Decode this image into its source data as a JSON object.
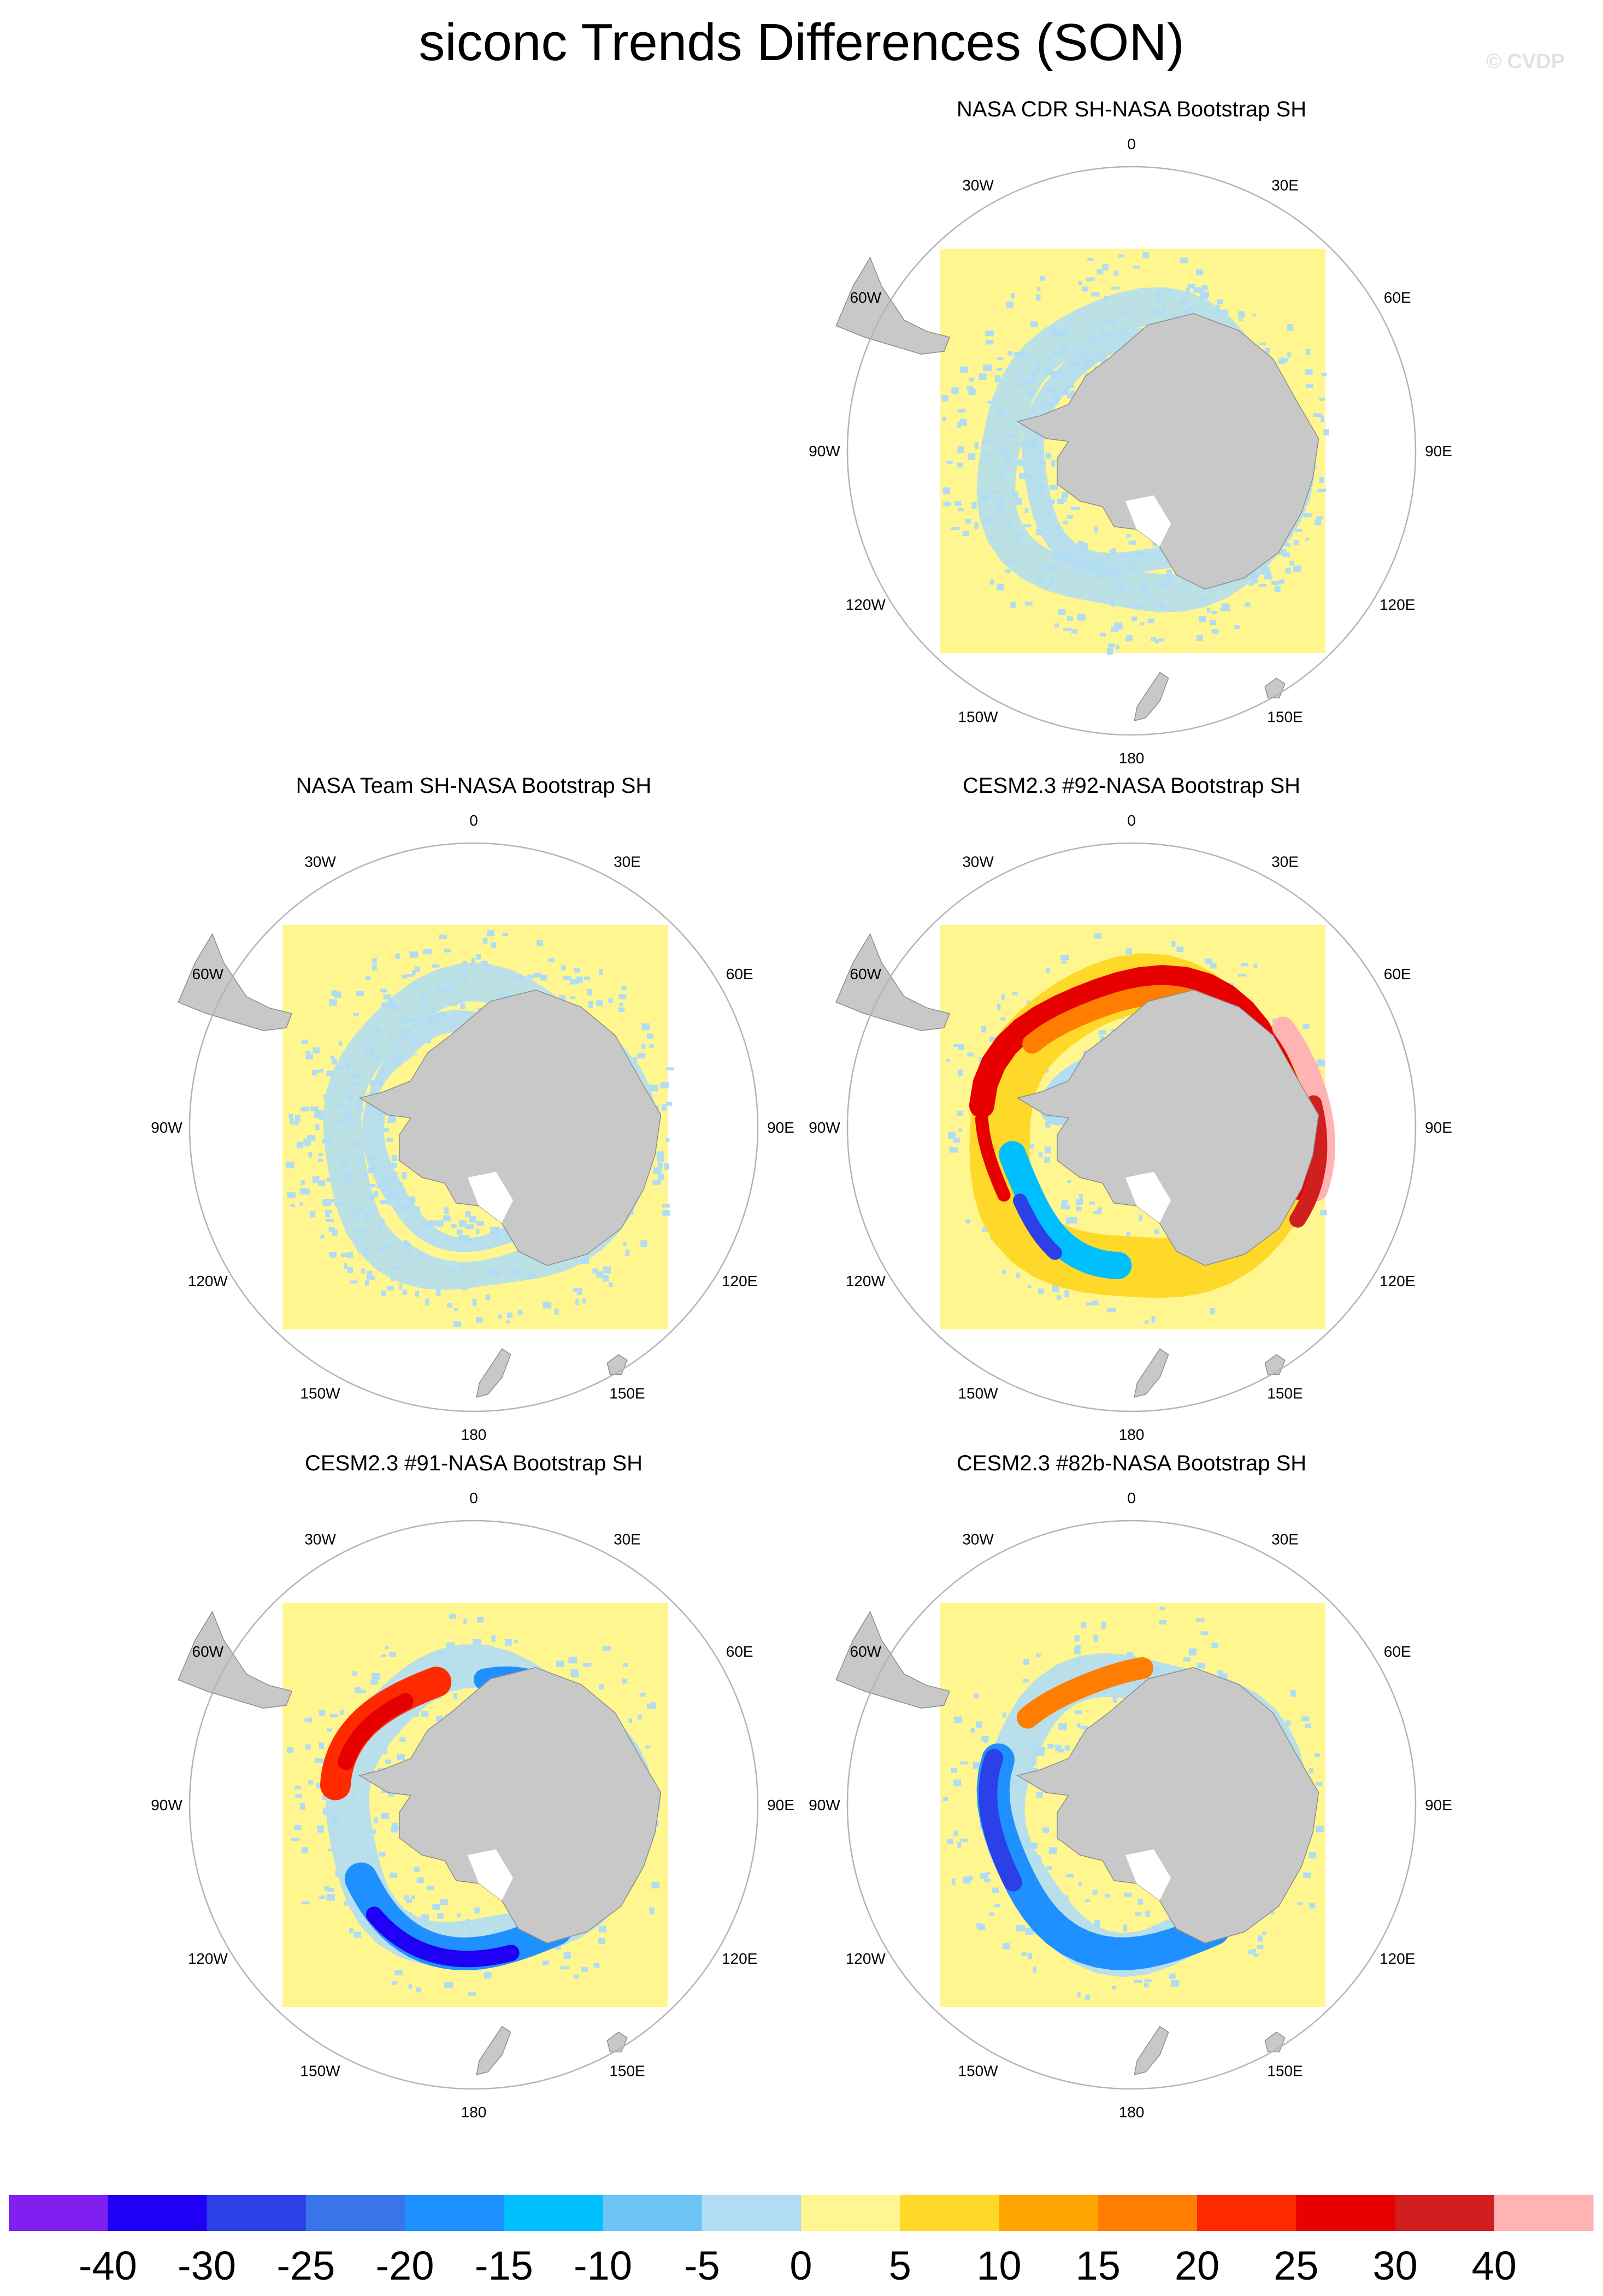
{
  "title": "siconc Trends Differences (SON)",
  "watermark": "© CVDP",
  "lon_labels": [
    "0",
    "30E",
    "60E",
    "90E",
    "120E",
    "150E",
    "180",
    "150W",
    "120W",
    "90W",
    "60W",
    "30W"
  ],
  "colors": {
    "ocean_neutral": "#fff68f",
    "small_negative": "#b0ddf4",
    "land": "#c8c8c8",
    "land_edge": "#8c8c8c",
    "frame": "#b4b4b4"
  },
  "panels": [
    {
      "id": "cdr",
      "title": "NASA CDR SH-NASA Bootstrap SH",
      "pattern": "mild"
    },
    {
      "id": "team",
      "title": "NASA Team SH-NASA Bootstrap SH",
      "pattern": "mild2"
    },
    {
      "id": "c92",
      "title": "CESM2.3 #92-NASA Bootstrap SH",
      "pattern": "warm"
    },
    {
      "id": "c91",
      "title": "CESM2.3 #91-NASA Bootstrap SH",
      "pattern": "mixed"
    },
    {
      "id": "c82b",
      "title": "CESM2.3 #82b-NASA Bootstrap SH",
      "pattern": "cool"
    }
  ],
  "colorbar": {
    "colors": [
      "#7f1ff0",
      "#1f00f5",
      "#2b40e6",
      "#3a74ea",
      "#1f90ff",
      "#00bfff",
      "#6ec5f5",
      "#b0ddf4",
      "#fff68f",
      "#ffd92a",
      "#ffa500",
      "#ff7d00",
      "#ff2a00",
      "#e60000",
      "#d11e1e",
      "#ffb3b3"
    ],
    "labels": [
      "-40",
      "-30",
      "-25",
      "-20",
      "-15",
      "-10",
      "-5",
      "0",
      "5",
      "10",
      "15",
      "20",
      "25",
      "30",
      "40"
    ]
  }
}
